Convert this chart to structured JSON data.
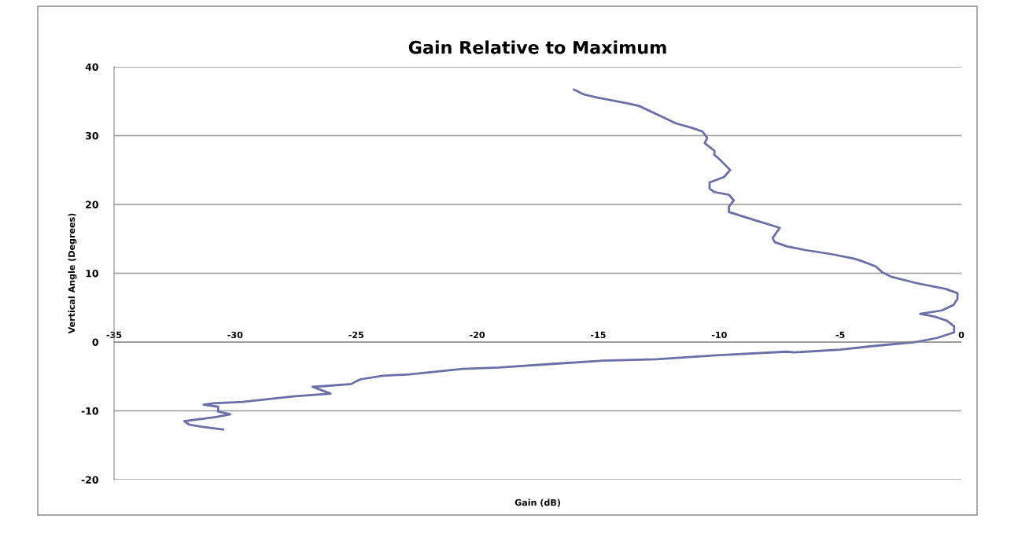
{
  "chart_data": {
    "type": "line",
    "title": "Gain Relative to Maximum",
    "xlabel": "Gain (dB)",
    "ylabel": "Vertical Angle (Degrees)",
    "xlim": [
      -35,
      0
    ],
    "xticks": [
      -35,
      -30,
      -25,
      -20,
      -15,
      -10,
      -5,
      0
    ],
    "ylim": [
      -20,
      40
    ],
    "yticks": [
      -20,
      -10,
      0,
      10,
      20,
      30,
      40
    ],
    "grid": "y",
    "marker": "none",
    "line_style": "solid",
    "series": [
      {
        "color": "#6b6fa8",
        "x": [
          -16.0,
          -15.6,
          -15.0,
          -13.8,
          -13.3,
          -12.4,
          -11.8,
          -11.1,
          -10.7,
          -10.5,
          -10.6,
          -10.2,
          -10.2,
          -10.0,
          -9.8,
          -9.55,
          -9.8,
          -10.4,
          -10.4,
          -10.2,
          -9.6,
          -9.4,
          -9.6,
          -9.6,
          -8.7,
          -7.5,
          -7.8,
          -7.7,
          -7.2,
          -6.5,
          -5.4,
          -4.4,
          -4.06,
          -3.54,
          -3.25,
          -2.9,
          -1.9,
          -0.62,
          -0.16,
          -0.16,
          -0.32,
          -0.8,
          -1.7,
          -1.1,
          -0.6,
          -0.3,
          -0.3,
          -1.0,
          -1.9,
          -3.7,
          -5.0,
          -6.9,
          -7.2,
          -10.0,
          -12.6,
          -14.8,
          -17.0,
          -19.1,
          -20.6,
          -22.8,
          -23.9,
          -24.8,
          -25.0,
          -25.2,
          -26.3,
          -26.8,
          -26.06,
          -27.6,
          -29.7,
          -30.9,
          -31.3,
          -30.7,
          -30.7,
          -30.2,
          -30.8,
          -32.1,
          -31.9,
          -31.4,
          -30.5
        ],
        "values": [
          36.7,
          36.0,
          35.5,
          34.7,
          34.3,
          32.8,
          31.8,
          31.1,
          30.6,
          29.7,
          28.9,
          27.8,
          27.2,
          26.6,
          25.9,
          25.0,
          24.0,
          23.2,
          22.3,
          21.8,
          21.4,
          20.6,
          19.7,
          18.9,
          17.9,
          16.6,
          15.1,
          14.5,
          13.9,
          13.4,
          12.8,
          12.1,
          11.7,
          11.0,
          10.1,
          9.5,
          8.6,
          7.7,
          7.1,
          6.3,
          5.4,
          4.6,
          4.1,
          3.7,
          3.1,
          2.3,
          1.4,
          0.6,
          0.0,
          -0.6,
          -1.1,
          -1.5,
          -1.4,
          -1.9,
          -2.5,
          -2.7,
          -3.2,
          -3.7,
          -3.9,
          -4.7,
          -4.9,
          -5.4,
          -5.7,
          -6.1,
          -6.4,
          -6.5,
          -7.5,
          -7.9,
          -8.7,
          -8.9,
          -9.1,
          -9.4,
          -10.1,
          -10.5,
          -10.9,
          -11.5,
          -12.0,
          -12.3,
          -12.7
        ]
      }
    ]
  }
}
